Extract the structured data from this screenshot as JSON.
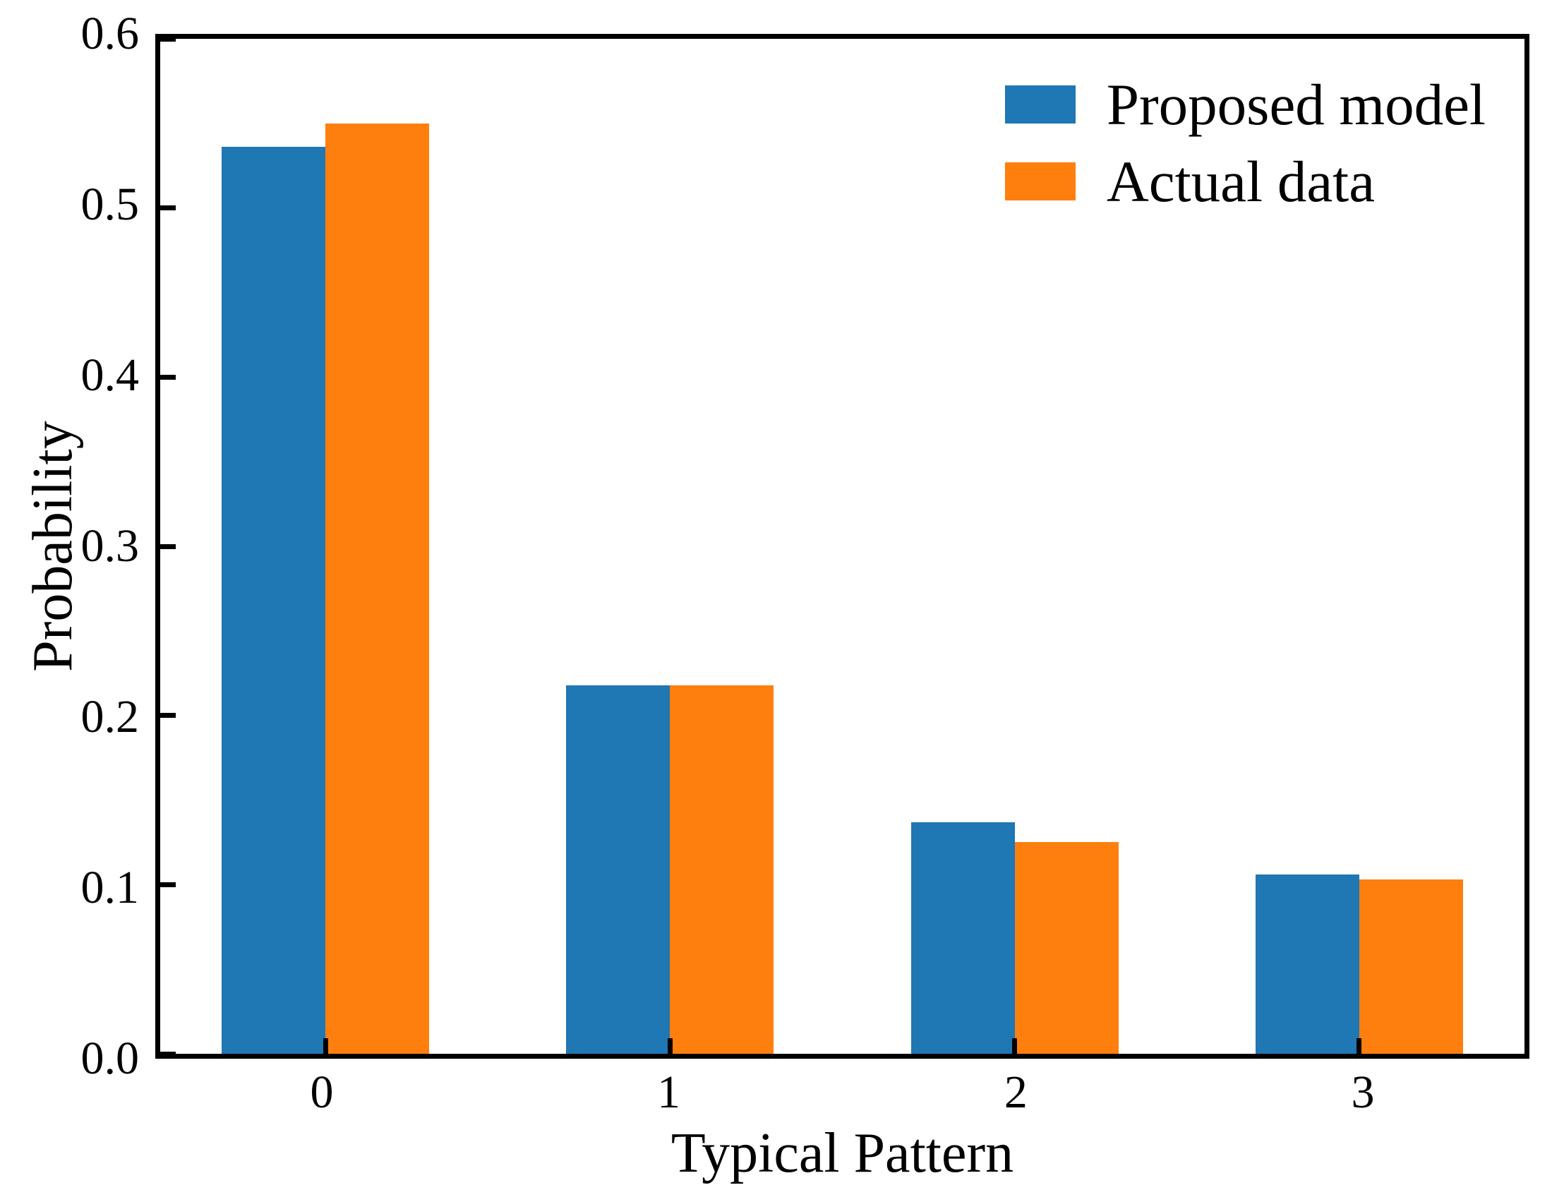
{
  "chart_data": {
    "type": "bar",
    "title": "",
    "categories": [
      "0",
      "1",
      "2",
      "3"
    ],
    "series": [
      {
        "name": "Proposed model",
        "color": "#1f77b4",
        "values": [
          0.536,
          0.218,
          0.137,
          0.106
        ]
      },
      {
        "name": "Actual data",
        "color": "#ff7f0e",
        "values": [
          0.55,
          0.218,
          0.125,
          0.103
        ]
      }
    ],
    "xlabel": "Typical Pattern",
    "ylabel": "Probability",
    "ylim": [
      0,
      0.6
    ],
    "yticks": [
      "0.0",
      "0.1",
      "0.2",
      "0.3",
      "0.4",
      "0.5",
      "0.6"
    ],
    "xlim_units": [
      -0.48,
      3.48
    ],
    "bar_width_units": 0.3,
    "grid": false,
    "legend_position": "upper right",
    "legend_frame": false,
    "axis_color": "#000000",
    "background_color": "#ffffff"
  }
}
